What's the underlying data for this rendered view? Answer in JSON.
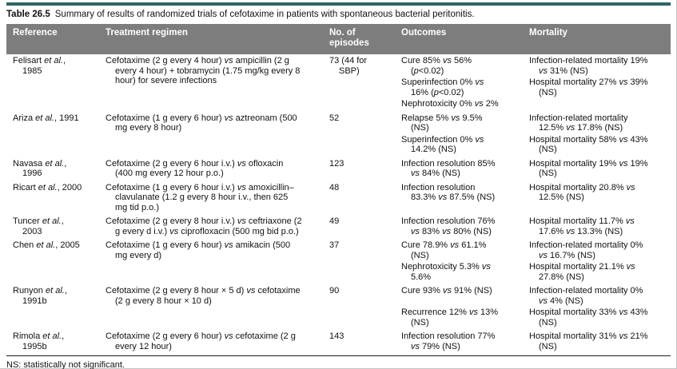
{
  "caption": {
    "label": "Table 26.5",
    "text": "Summary of results of randomized trials of cefotaxime in patients with spontaneous bacterial peritonitis."
  },
  "colors": {
    "header_bg": "#7d7d7d",
    "top_rule": "#2e6561"
  },
  "table": {
    "headers": [
      "Reference",
      "Treatment regimen",
      "No. of episodes",
      "Outcomes",
      "Mortality"
    ],
    "rows": [
      {
        "reference": "Felisart et al., 1985",
        "regimen": "Cefotaxime (2 g every 4 hour) vs ampicillin (2 g every 4 hour) + tobramycin (1.75 mg/kg every 8 hour) for severe infections",
        "episodes": "73 (44 for SBP)",
        "outcomes": [
          "Cure 85% vs 56% (p<0.02)",
          "Superinfection 0% vs 16% (p<0.02)",
          "Nephrotoxicity 0% vs 2%"
        ],
        "mortality": [
          "Infection-related mortality 19% vs 31% (NS)",
          "Hospital mortality 27% vs 39% (NS)"
        ]
      },
      {
        "reference": "Ariza et al., 1991",
        "regimen": "Cefotaxime (1 g every 6 hour) vs aztreonam (500 mg every 8 hour)",
        "episodes": "52",
        "outcomes": [
          "Relapse 5% vs 9.5% (NS)",
          "Superinfection 0% vs 14.2% (NS)"
        ],
        "mortality": [
          "Infection-related mortality 12.5% vs 17.8% (NS)",
          "Hospital mortality 58% vs 43% (NS)"
        ]
      },
      {
        "reference": "Navasa et al., 1996",
        "regimen": "Cefotaxime (2 g every 6 hour i.v.) vs ofloxacin (400 mg every 12 hour p.o.)",
        "episodes": "123",
        "outcomes": [
          "Infection resolution 85% vs 84% (NS)"
        ],
        "mortality": [
          "Hospital mortality 19% vs 19% (NS)"
        ]
      },
      {
        "reference": "Ricart et al., 2000",
        "regimen": "Cefotaxime (1 g every 6 hour i.v.) vs amoxicillin–clavulanate (1.2 g every 8 hour i.v., then 625 mg tid p.o.)",
        "episodes": "48",
        "outcomes": [
          "Infection resolution 83.3% vs 87.5% (NS)"
        ],
        "mortality": [
          "Hospital mortality 20.8% vs 12.5% (NS)"
        ]
      },
      {
        "reference": "Tuncer et al., 2003",
        "regimen": "Cefotaxime (2 g every 8 hour i.v.) vs ceftriaxone (2 g every d i.v.) vs ciprofloxacin (500 mg bid p.o.)",
        "episodes": "49",
        "outcomes": [
          "Infection resolution 76% vs 83% vs 80% (NS)"
        ],
        "mortality": [
          "Hospital mortality 11.7% vs 17.6% vs 13.3% (NS)"
        ]
      },
      {
        "reference": "Chen et al., 2005",
        "regimen": "Cefotaxime (1 g every 6 hour) vs amikacin (500 mg every d)",
        "episodes": "37",
        "outcomes": [
          "Cure 78.9% vs 61.1% (NS)",
          "Nephrotoxicity 5.3% vs 5.6%"
        ],
        "mortality": [
          "Infection-related mortality 0% vs 16.7% (NS)",
          "Hospital mortality 21.1% vs 27.8% (NS)"
        ]
      },
      {
        "reference": "Runyon et al., 1991b",
        "regimen": "Cefotaxime (2 g every 8 hour × 5 d) vs cefotaxime (2 g every 8 hour × 10 d)",
        "episodes": "90",
        "outcomes": [
          "Cure 93% vs 91% (NS)",
          "Recurrence 12% vs 13% (NS)"
        ],
        "mortality": [
          "Infection-related mortality 0% vs 4% (NS)",
          "Hospital mortality 33% vs 43% (NS)"
        ]
      },
      {
        "reference": "Rimola et al., 1995b",
        "regimen": "Cefotaxime (2 g every 6 hour) vs cefotaxime (2 g every 12 hour)",
        "episodes": "143",
        "outcomes": [
          "Infection resolution 77% vs 79% (NS)"
        ],
        "mortality": [
          "Hospital mortality 31% vs 21% (NS)"
        ]
      }
    ]
  },
  "footnote": "NS: statistically not significant."
}
